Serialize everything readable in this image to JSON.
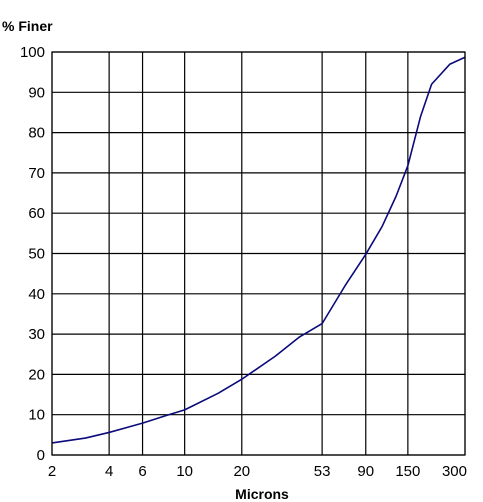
{
  "chart_data": {
    "type": "line",
    "xlabel": "Microns",
    "ylabel": "% Finer",
    "x_scale": "log",
    "xlim": [
      2,
      300
    ],
    "ylim": [
      0,
      100
    ],
    "grid": true,
    "x_ticks": [
      2,
      4,
      6,
      10,
      20,
      53,
      90,
      150,
      300
    ],
    "y_ticks": [
      0,
      10,
      20,
      30,
      40,
      50,
      60,
      70,
      80,
      90,
      100
    ],
    "line_color": "#0a0a7a",
    "series": [
      {
        "x": [
          2,
          3,
          4,
          6,
          8,
          10,
          15,
          20,
          30,
          40,
          53,
          70,
          90,
          110,
          130,
          150,
          175,
          200,
          250,
          300
        ],
        "y": [
          3,
          4.2,
          5.6,
          7.9,
          9.8,
          11.2,
          15.3,
          18.8,
          24.5,
          29.2,
          32.6,
          42.0,
          49.8,
          56.8,
          64.2,
          71.8,
          84.0,
          92.0,
          97.0,
          98.7
        ]
      }
    ]
  }
}
